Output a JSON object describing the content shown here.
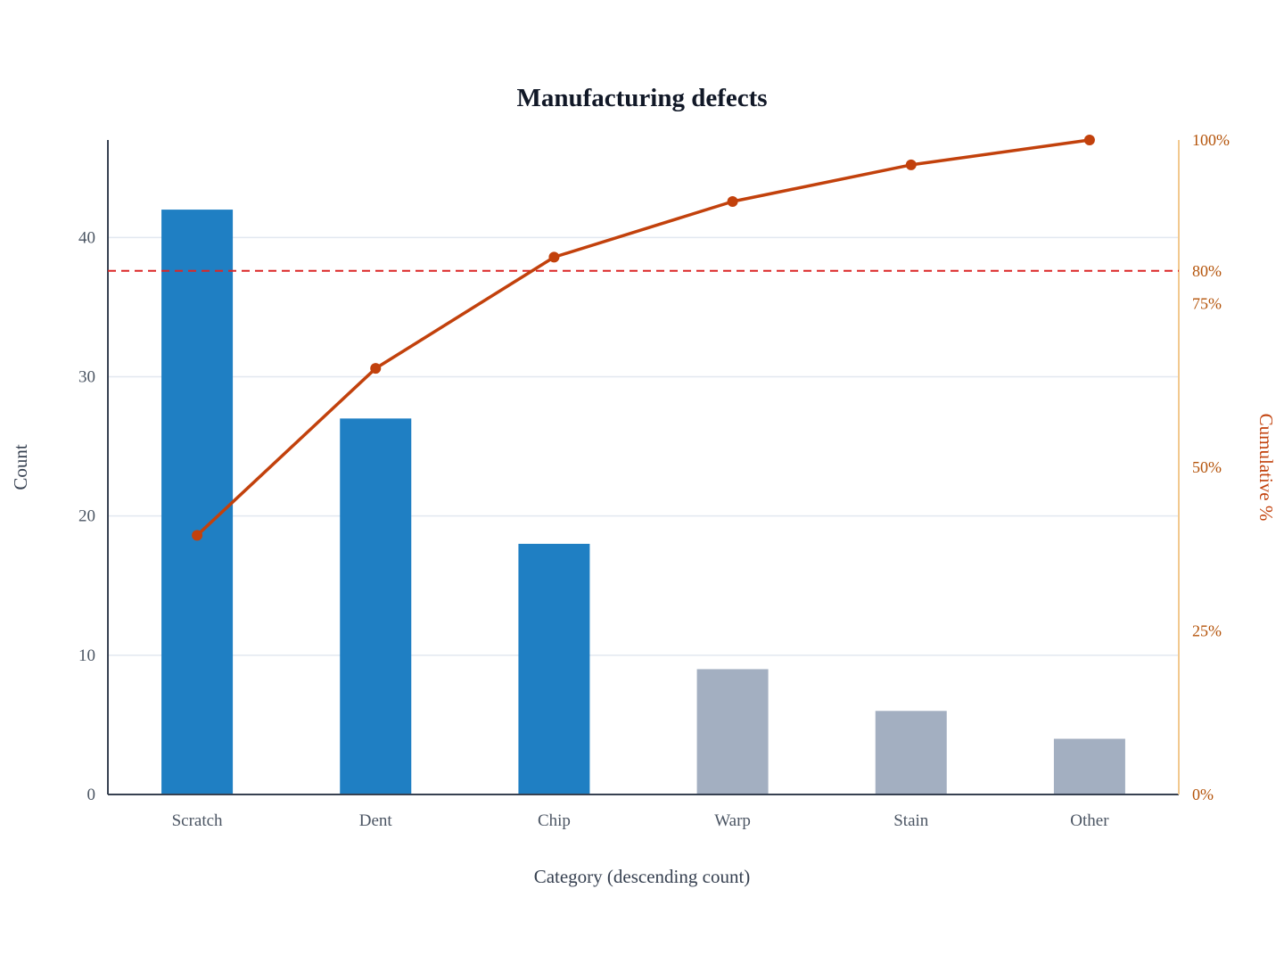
{
  "chart_data": {
    "type": "bar",
    "title": "Manufacturing defects",
    "xlabel": "Category (descending count)",
    "ylabel": "Count",
    "y2label": "Cumulative %",
    "categories": [
      "Scratch",
      "Dent",
      "Chip",
      "Warp",
      "Stain",
      "Other"
    ],
    "series": [
      {
        "type": "bar",
        "values": [
          42,
          27,
          18,
          9,
          6,
          4
        ],
        "highlighted": [
          true,
          true,
          true,
          false,
          false,
          false
        ]
      },
      {
        "type": "line",
        "axis": "right",
        "values": [
          39.6,
          65.1,
          82.1,
          90.6,
          96.2,
          100
        ]
      }
    ],
    "ylim": [
      0,
      47
    ],
    "y_ticks": [
      0,
      10,
      20,
      30,
      40
    ],
    "y2lim": [
      0,
      100
    ],
    "y2_ticks": [
      0,
      25,
      50,
      75,
      80,
      100
    ],
    "y2_tick_labels": [
      "0%",
      "25%",
      "50%",
      "75%",
      "80%",
      "100%"
    ],
    "threshold": 80,
    "grid": true,
    "legend": "none",
    "colors": {
      "bar_vital": "#1f7fc3",
      "bar_other": "#a3afc1",
      "line": "#c2410c",
      "threshold": "#dc2626",
      "right_axis": "#f2c98f",
      "axis": "#374151",
      "grid": "#e2e8f0"
    }
  }
}
